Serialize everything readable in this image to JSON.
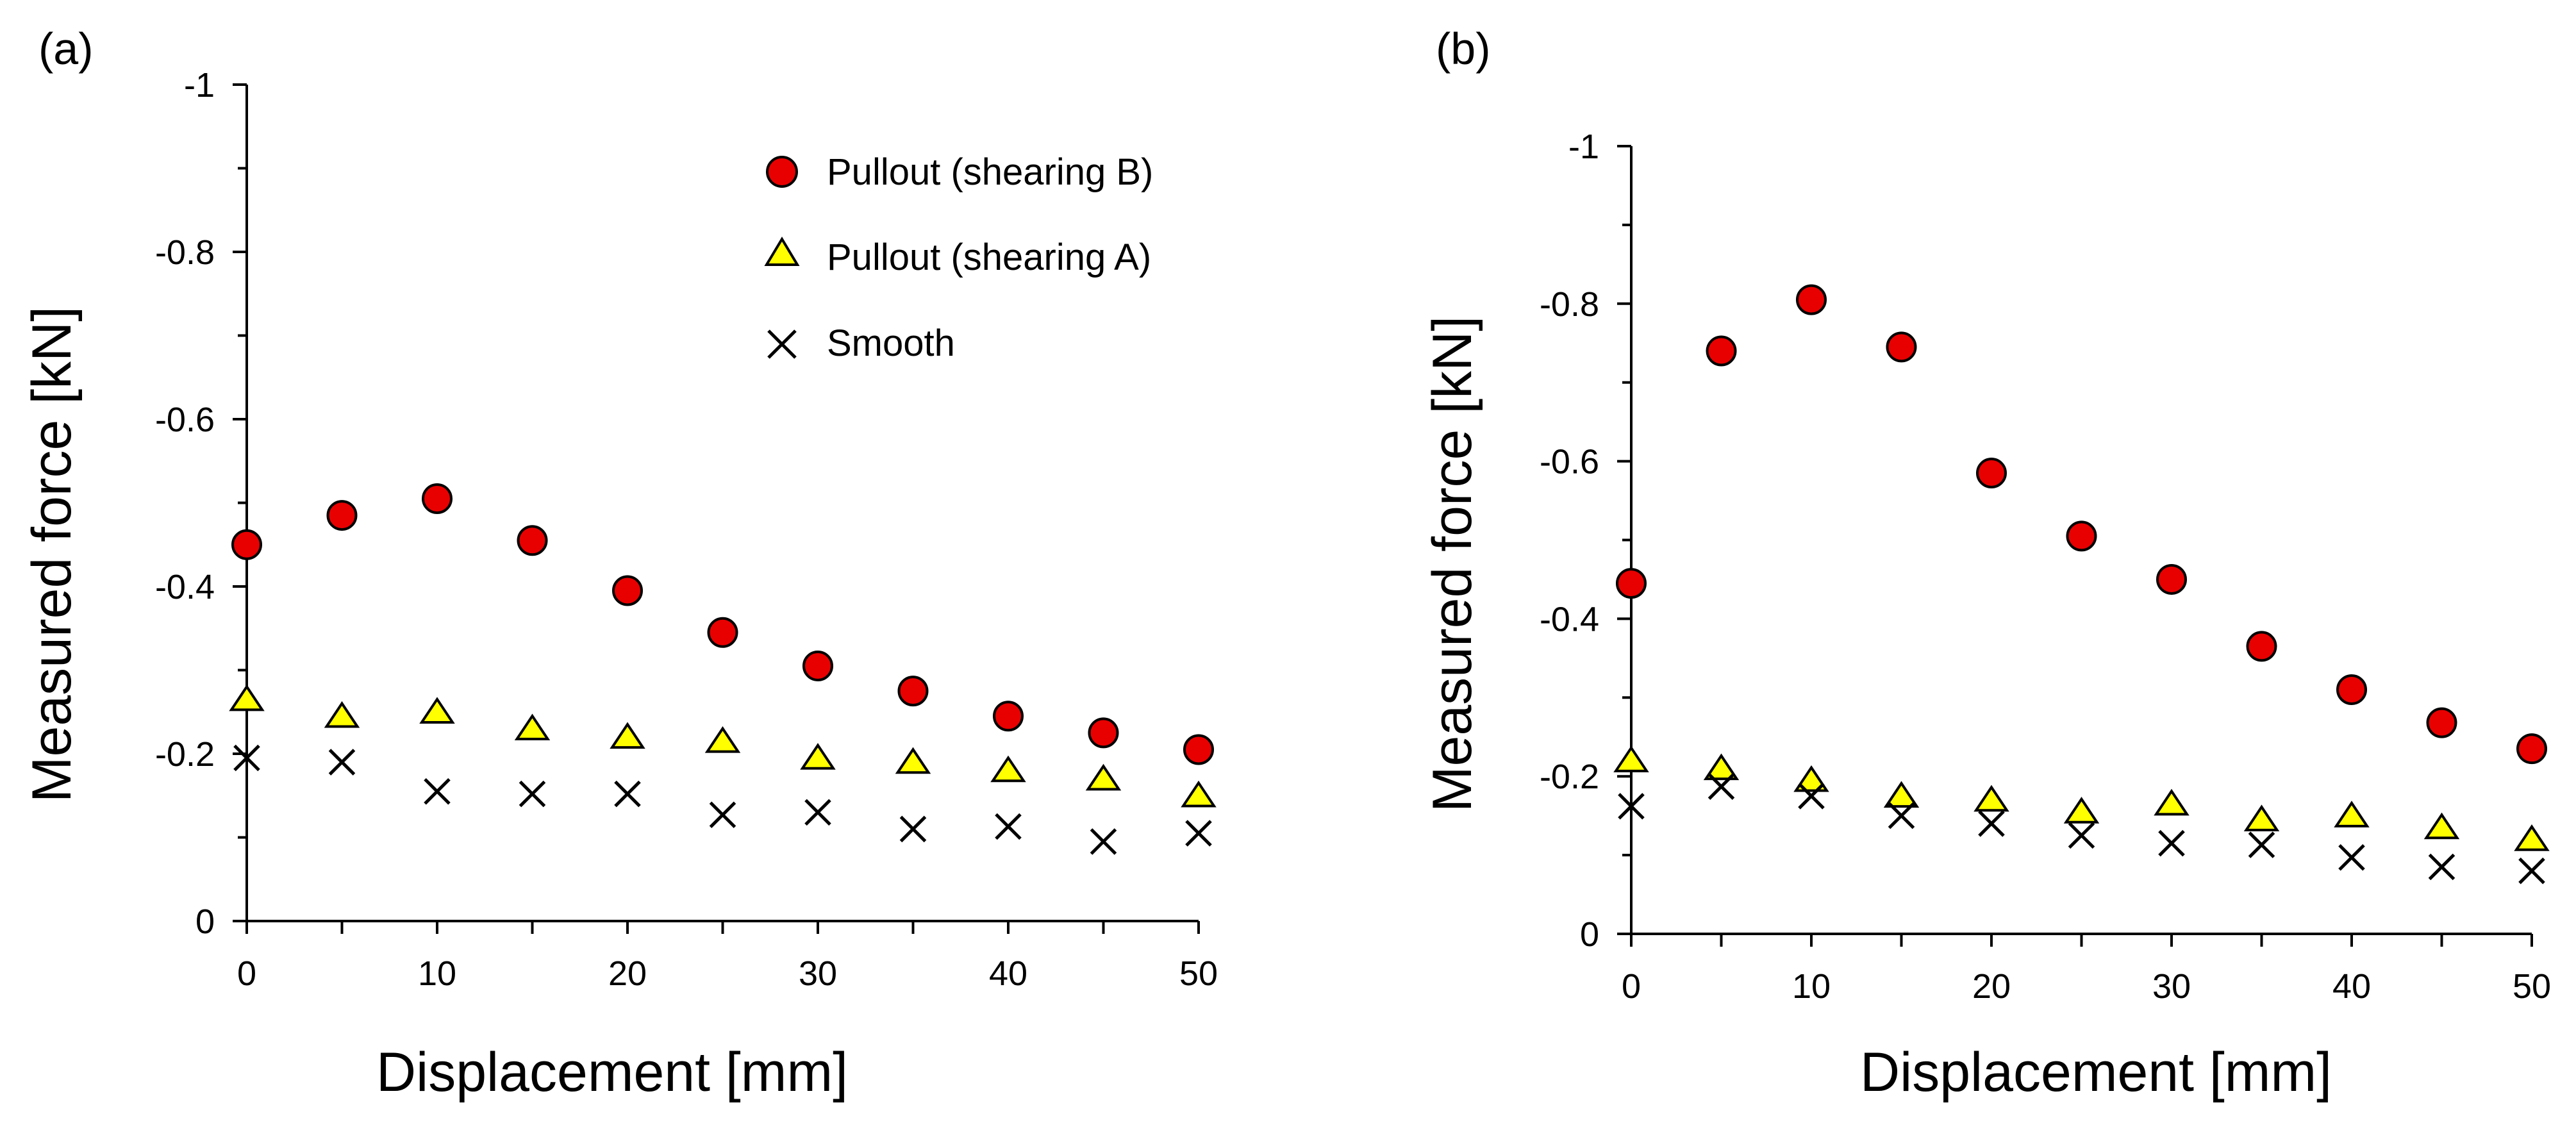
{
  "chart_data": [
    {
      "type": "scatter",
      "panel_label": "(a)",
      "xlabel": "Displacement [mm]",
      "ylabel": "Measured force [kN]",
      "xlim": [
        0,
        50
      ],
      "ylim": [
        0,
        -1
      ],
      "xticks": [
        "0",
        "10",
        "20",
        "30",
        "40",
        "50"
      ],
      "yticks": [
        "-1",
        "-0.8",
        "-0.6",
        "-0.4",
        "-0.2",
        "0"
      ],
      "legend_position": "top-right",
      "x": [
        0,
        5,
        10,
        15,
        20,
        25,
        30,
        35,
        40,
        45,
        50
      ],
      "series": [
        {
          "name": "Pullout (shearing B)",
          "marker": "circle",
          "values": [
            -0.45,
            -0.485,
            -0.505,
            -0.455,
            -0.395,
            -0.345,
            -0.305,
            -0.275,
            -0.245,
            -0.225,
            -0.205
          ]
        },
        {
          "name": "Pullout (shearing A)",
          "marker": "triangle",
          "values": [
            -0.265,
            -0.245,
            -0.25,
            -0.23,
            -0.22,
            -0.215,
            -0.195,
            -0.19,
            -0.18,
            -0.17,
            -0.15
          ]
        },
        {
          "name": "Smooth",
          "marker": "x",
          "values": [
            -0.195,
            -0.19,
            -0.155,
            -0.152,
            -0.152,
            -0.127,
            -0.13,
            -0.11,
            -0.113,
            -0.095,
            -0.105
          ]
        }
      ]
    },
    {
      "type": "scatter",
      "panel_label": "(b)",
      "xlabel": "Displacement [mm]",
      "ylabel": "Measured force [kN]",
      "xlim": [
        0,
        50
      ],
      "ylim": [
        0,
        -1
      ],
      "xticks": [
        "0",
        "10",
        "20",
        "30",
        "40",
        "50"
      ],
      "yticks": [
        "-1",
        "-0.8",
        "-0.6",
        "-0.4",
        "-0.2",
        "0"
      ],
      "x": [
        0,
        5,
        10,
        15,
        20,
        25,
        30,
        35,
        40,
        45,
        50
      ],
      "series": [
        {
          "name": "Pullout (shearing B)",
          "marker": "circle",
          "values": [
            -0.445,
            -0.74,
            -0.805,
            -0.745,
            -0.585,
            -0.505,
            -0.45,
            -0.365,
            -0.31,
            -0.268,
            -0.235
          ]
        },
        {
          "name": "Pullout (shearing A)",
          "marker": "triangle",
          "values": [
            -0.22,
            -0.21,
            -0.195,
            -0.175,
            -0.17,
            -0.155,
            -0.165,
            -0.145,
            -0.15,
            -0.135,
            -0.12
          ]
        },
        {
          "name": "Smooth",
          "marker": "x",
          "values": [
            -0.162,
            -0.187,
            -0.175,
            -0.15,
            -0.14,
            -0.125,
            -0.115,
            -0.113,
            -0.097,
            -0.085,
            -0.08
          ]
        }
      ]
    }
  ],
  "colors": {
    "circle_fill": "#e80000",
    "triangle_fill": "#ffff00",
    "marker_stroke": "#000000",
    "axis": "#000000"
  }
}
